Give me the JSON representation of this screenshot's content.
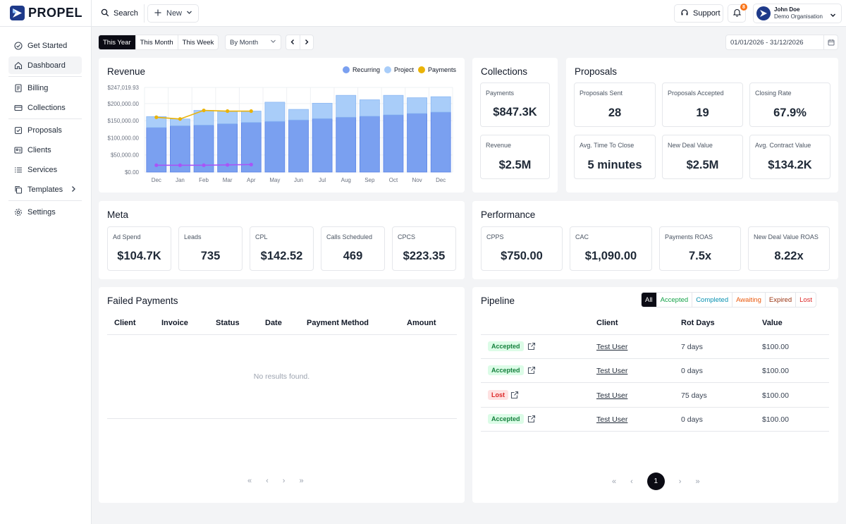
{
  "app": {
    "brand": "PROPEL"
  },
  "sidebar": {
    "items": [
      {
        "label": "Get Started",
        "icon": "check-circle-icon"
      },
      {
        "label": "Dashboard",
        "icon": "home-icon",
        "active": true
      },
      {
        "label": "Billing",
        "icon": "receipt-icon"
      },
      {
        "label": "Collections",
        "icon": "credit-card-icon"
      },
      {
        "label": "Proposals",
        "icon": "checkbox-icon"
      },
      {
        "label": "Clients",
        "icon": "contact-card-icon"
      },
      {
        "label": "Services",
        "icon": "list-icon"
      },
      {
        "label": "Templates",
        "icon": "copy-icon"
      },
      {
        "label": "Settings",
        "icon": "gear-icon"
      }
    ]
  },
  "topbar": {
    "search_label": "Search",
    "new_label": "New",
    "support_label": "Support",
    "notification_count": "8",
    "user_name": "John Doe",
    "user_org": "Demo Organisation"
  },
  "filters": {
    "ranges": [
      "This Year",
      "This Month",
      "This Week"
    ],
    "group_by": "By Month",
    "date_range": "01/01/2026 - 31/12/2026"
  },
  "revenue": {
    "title": "Revenue",
    "legend": [
      "Recurring",
      "Project",
      "Payments"
    ]
  },
  "chart_data": {
    "type": "bar",
    "title": "Revenue",
    "categories": [
      "Dec",
      "Jan",
      "Feb",
      "Mar",
      "Apr",
      "May",
      "Jun",
      "Jul",
      "Aug",
      "Sep",
      "Oct",
      "Nov",
      "Dec"
    ],
    "y_ticks": [
      "$0.00",
      "$50,000.00",
      "$100,000.00",
      "$150,000.00",
      "$200,000.00",
      "$247,019.93"
    ],
    "ylim": [
      0,
      247019.93
    ],
    "series": [
      {
        "name": "Recurring",
        "type": "stacked-bar",
        "values": [
          130000,
          135000,
          137000,
          141000,
          145000,
          148000,
          152000,
          156000,
          160000,
          163000,
          167000,
          171000,
          175000
        ]
      },
      {
        "name": "Project",
        "type": "stacked-bar",
        "values": [
          32000,
          20000,
          43000,
          37000,
          33000,
          56000,
          31000,
          45000,
          64000,
          48000,
          57000,
          46000,
          45000
        ]
      },
      {
        "name": "Payments",
        "type": "line",
        "values": [
          160000,
          155000,
          180000,
          178000,
          178000,
          null,
          null,
          null,
          null,
          null,
          null,
          null,
          null
        ]
      },
      {
        "name": "",
        "type": "line",
        "values": [
          20000,
          20000,
          20000,
          21000,
          22000,
          null,
          null,
          null,
          null,
          null,
          null,
          null,
          null
        ]
      }
    ],
    "colors": {
      "recurring": "#7aa0f0",
      "project": "#a9cdf9",
      "payments": "#eab308",
      "lower": "#a855f7"
    },
    "grid": true,
    "legend_position": "top-right"
  },
  "collections": {
    "title": "Collections",
    "stats": [
      {
        "label": "Payments",
        "value": "$847.3K"
      },
      {
        "label": "Revenue",
        "value": "$2.5M"
      }
    ]
  },
  "proposals": {
    "title": "Proposals",
    "stats": [
      {
        "label": "Proposals Sent",
        "value": "28"
      },
      {
        "label": "Proposals Accepted",
        "value": "19"
      },
      {
        "label": "Closing Rate",
        "value": "67.9%"
      },
      {
        "label": "Avg. Time To Close",
        "value": "5 minutes"
      },
      {
        "label": "New Deal Value",
        "value": "$2.5M"
      },
      {
        "label": "Avg. Contract Value",
        "value": "$134.2K"
      }
    ]
  },
  "meta": {
    "title": "Meta",
    "stats": [
      {
        "label": "Ad Spend",
        "value": "$104.7K"
      },
      {
        "label": "Leads",
        "value": "735"
      },
      {
        "label": "CPL",
        "value": "$142.52"
      },
      {
        "label": "Calls Scheduled",
        "value": "469"
      },
      {
        "label": "CPCS",
        "value": "$223.35"
      }
    ]
  },
  "performance": {
    "title": "Performance",
    "stats": [
      {
        "label": "CPPS",
        "value": "$750.00"
      },
      {
        "label": "CAC",
        "value": "$1,090.00"
      },
      {
        "label": "Payments ROAS",
        "value": "7.5x"
      },
      {
        "label": "New Deal Value ROAS",
        "value": "8.22x"
      }
    ]
  },
  "failed_payments": {
    "title": "Failed Payments",
    "columns": [
      "Client",
      "Invoice",
      "Status",
      "Date",
      "Payment Method",
      "Amount"
    ],
    "empty_text": "No results found."
  },
  "pipeline": {
    "title": "Pipeline",
    "tabs": [
      {
        "label": "All",
        "color": "#ffffff"
      },
      {
        "label": "Accepted",
        "color": "#16a34a"
      },
      {
        "label": "Completed",
        "color": "#0891b2"
      },
      {
        "label": "Awaiting",
        "color": "#ea580c"
      },
      {
        "label": "Expired",
        "color": "#9a3412"
      },
      {
        "label": "Lost",
        "color": "#dc2626"
      }
    ],
    "columns": [
      "Client",
      "Rot Days",
      "Value"
    ],
    "rows": [
      {
        "status": "Accepted",
        "client": "Test User",
        "rot_days": "7 days",
        "value": "$100.00"
      },
      {
        "status": "Accepted",
        "client": "Test User",
        "rot_days": "0 days",
        "value": "$100.00"
      },
      {
        "status": "Lost",
        "client": "Test User",
        "rot_days": "75 days",
        "value": "$100.00"
      },
      {
        "status": "Accepted",
        "client": "Test User",
        "rot_days": "0 days",
        "value": "$100.00"
      }
    ],
    "current_page": "1"
  }
}
